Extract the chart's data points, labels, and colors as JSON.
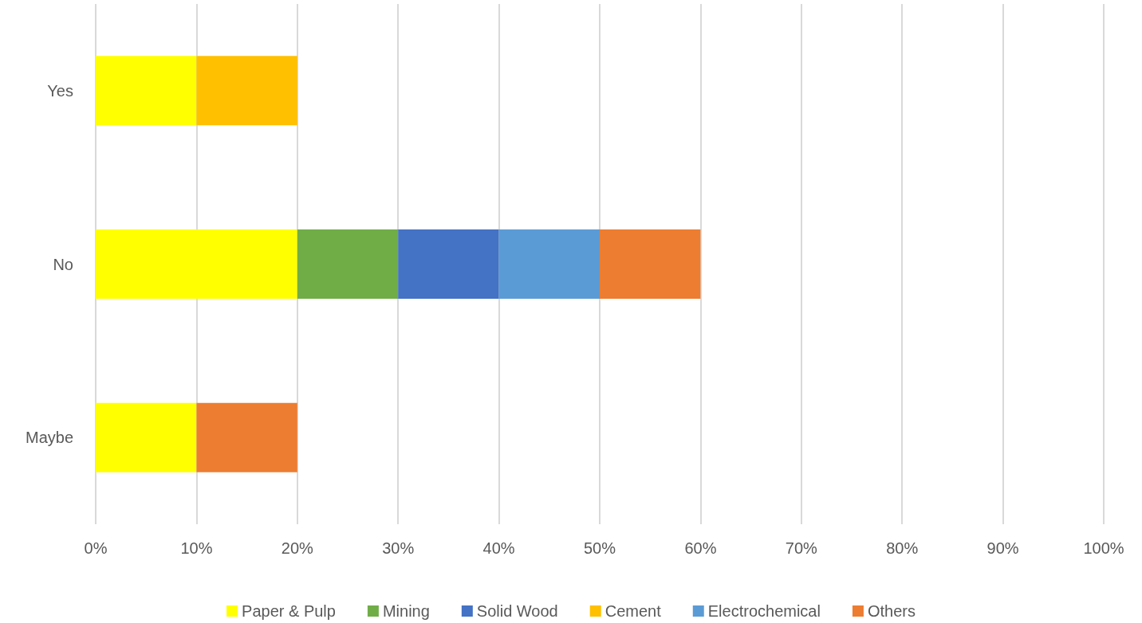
{
  "chart_data": {
    "type": "bar",
    "orientation": "horizontal",
    "stacked": true,
    "categories": [
      "Yes",
      "No",
      "Maybe"
    ],
    "series": [
      {
        "name": "Paper & Pulp",
        "color": "#ffff00",
        "values": [
          10,
          20,
          10
        ]
      },
      {
        "name": "Mining",
        "color": "#70ad47",
        "values": [
          null,
          10,
          null
        ]
      },
      {
        "name": "Solid Wood",
        "color": "#4472c4",
        "values": [
          null,
          10,
          null
        ]
      },
      {
        "name": "Cement",
        "color": "#ffc000",
        "values": [
          10,
          null,
          null
        ]
      },
      {
        "name": "Electrochemical",
        "color": "#5b9bd5",
        "values": [
          null,
          10,
          null
        ]
      },
      {
        "name": "Others",
        "color": "#ed7d31",
        "values": [
          null,
          10,
          10
        ]
      }
    ],
    "xlim": [
      0,
      100
    ],
    "xticks": [
      {
        "value": 0,
        "label": "0%"
      },
      {
        "value": 10,
        "label": "10%"
      },
      {
        "value": 20,
        "label": "20%"
      },
      {
        "value": 30,
        "label": "30%"
      },
      {
        "value": 40,
        "label": "40%"
      },
      {
        "value": 50,
        "label": "50%"
      },
      {
        "value": 60,
        "label": "60%"
      },
      {
        "value": 70,
        "label": "70%"
      },
      {
        "value": 80,
        "label": "80%"
      },
      {
        "value": 90,
        "label": "90%"
      },
      {
        "value": 100,
        "label": "100%"
      }
    ],
    "grid": "x",
    "legend": "bottom"
  }
}
